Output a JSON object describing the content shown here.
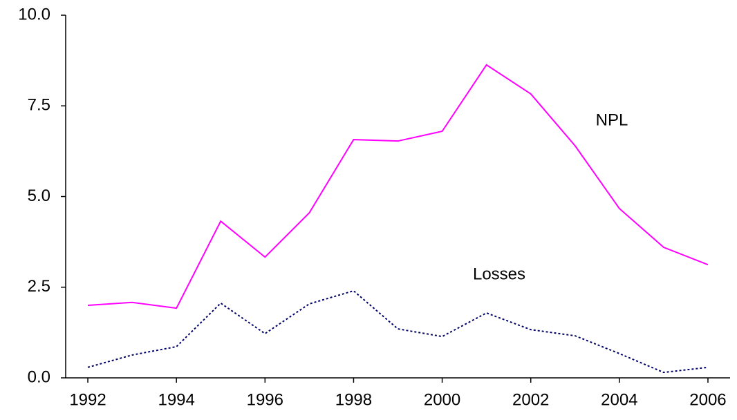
{
  "chart_data": {
    "type": "line",
    "x": [
      1992,
      1993,
      1994,
      1995,
      1996,
      1997,
      1998,
      1999,
      2000,
      2001,
      2002,
      2003,
      2004,
      2005,
      2006
    ],
    "series": [
      {
        "name": "NPL",
        "color": "#ff00ff",
        "dash": "solid",
        "values": [
          2.0,
          2.08,
          1.92,
          4.32,
          3.33,
          4.55,
          6.57,
          6.53,
          6.8,
          8.63,
          7.83,
          6.4,
          4.67,
          3.6,
          3.12
        ]
      },
      {
        "name": "Losses",
        "color": "#000066",
        "dash": "dotted",
        "values": [
          0.29,
          0.63,
          0.86,
          2.06,
          1.22,
          2.04,
          2.4,
          1.35,
          1.14,
          1.79,
          1.33,
          1.16,
          0.67,
          0.15,
          0.29
        ]
      }
    ],
    "xlim": [
      1991.5,
      2006.5
    ],
    "xticks": [
      1992,
      1994,
      1996,
      1998,
      2000,
      2002,
      2004,
      2006
    ],
    "ylim": [
      0,
      10
    ],
    "yticks": [
      {
        "value": 0,
        "label": "0.0"
      },
      2.5,
      {
        "value": 5,
        "label": "5.0"
      },
      7.5,
      {
        "value": 10,
        "label": "10.0"
      }
    ],
    "grid": false
  }
}
